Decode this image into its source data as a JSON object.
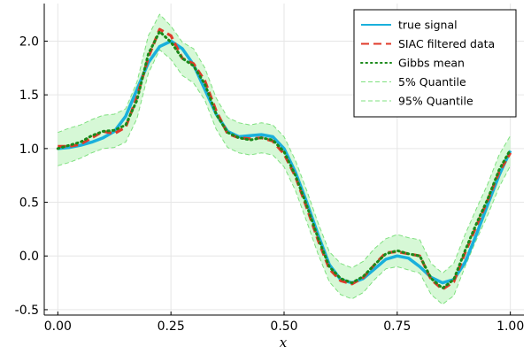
{
  "chart_data": {
    "type": "line",
    "title": "",
    "xlabel": "x",
    "ylabel": "",
    "xlim": [
      -0.03,
      1.03
    ],
    "ylim": [
      -0.55,
      2.35
    ],
    "xticks": [
      0.0,
      0.25,
      0.5,
      0.75,
      1.0
    ],
    "xtick_labels": [
      "0.00",
      "0.25",
      "0.50",
      "0.75",
      "1.00"
    ],
    "yticks": [
      -0.5,
      0.0,
      0.5,
      1.0,
      1.5,
      2.0
    ],
    "ytick_labels": [
      "-0.5",
      "0.0",
      "0.5",
      "1.0",
      "1.5",
      "2.0"
    ],
    "grid": true,
    "legend_position": "top-right",
    "x": [
      0.0,
      0.025,
      0.05,
      0.075,
      0.1,
      0.125,
      0.15,
      0.175,
      0.2,
      0.225,
      0.25,
      0.275,
      0.3,
      0.325,
      0.35,
      0.375,
      0.4,
      0.425,
      0.45,
      0.475,
      0.5,
      0.525,
      0.55,
      0.575,
      0.6,
      0.625,
      0.65,
      0.675,
      0.7,
      0.725,
      0.75,
      0.775,
      0.8,
      0.825,
      0.85,
      0.875,
      0.9,
      0.925,
      0.95,
      0.975,
      1.0
    ],
    "series": [
      {
        "name": "true signal",
        "color": "#1ab0dc",
        "style": "solid",
        "values": [
          1.0,
          1.01,
          1.03,
          1.06,
          1.1,
          1.16,
          1.3,
          1.55,
          1.8,
          1.95,
          2.0,
          1.93,
          1.78,
          1.55,
          1.32,
          1.16,
          1.11,
          1.12,
          1.13,
          1.11,
          1.0,
          0.78,
          0.5,
          0.2,
          -0.08,
          -0.22,
          -0.25,
          -0.21,
          -0.12,
          -0.03,
          0.0,
          -0.02,
          -0.1,
          -0.2,
          -0.25,
          -0.22,
          -0.06,
          0.2,
          0.48,
          0.75,
          0.98
        ]
      },
      {
        "name": "SIAC filtered data",
        "color": "#e03a2a",
        "style": "dashed",
        "values": [
          1.02,
          1.02,
          1.04,
          1.1,
          1.16,
          1.14,
          1.2,
          1.48,
          1.85,
          2.11,
          2.05,
          1.84,
          1.79,
          1.63,
          1.35,
          1.14,
          1.1,
          1.09,
          1.1,
          1.07,
          0.95,
          0.74,
          0.45,
          0.15,
          -0.12,
          -0.23,
          -0.26,
          -0.2,
          -0.08,
          0.03,
          0.04,
          0.02,
          0.0,
          -0.22,
          -0.31,
          -0.24,
          0.03,
          0.28,
          0.52,
          0.78,
          0.96
        ]
      },
      {
        "name": "Gibbs mean",
        "color": "#1a8a1a",
        "style": "dotted",
        "values": [
          1.0,
          1.03,
          1.06,
          1.12,
          1.16,
          1.17,
          1.22,
          1.45,
          1.88,
          2.09,
          1.99,
          1.84,
          1.77,
          1.6,
          1.32,
          1.15,
          1.1,
          1.08,
          1.1,
          1.08,
          0.97,
          0.75,
          0.47,
          0.17,
          -0.1,
          -0.21,
          -0.25,
          -0.19,
          -0.08,
          0.02,
          0.05,
          0.02,
          0.0,
          -0.21,
          -0.3,
          -0.22,
          0.05,
          0.3,
          0.53,
          0.8,
          0.99
        ]
      },
      {
        "name": "5% Quantile",
        "color": "#7fe07f",
        "style": "dashed",
        "values": [
          0.84,
          0.87,
          0.91,
          0.96,
          1.0,
          1.01,
          1.06,
          1.28,
          1.7,
          1.92,
          1.83,
          1.68,
          1.61,
          1.45,
          1.18,
          1.01,
          0.96,
          0.94,
          0.96,
          0.94,
          0.83,
          0.61,
          0.32,
          0.02,
          -0.24,
          -0.36,
          -0.4,
          -0.34,
          -0.22,
          -0.12,
          -0.1,
          -0.13,
          -0.16,
          -0.36,
          -0.45,
          -0.37,
          -0.1,
          0.15,
          0.38,
          0.64,
          0.84
        ]
      },
      {
        "name": "95% Quantile",
        "color": "#7fe07f",
        "style": "dashed",
        "values": [
          1.15,
          1.19,
          1.22,
          1.27,
          1.31,
          1.32,
          1.37,
          1.62,
          2.05,
          2.25,
          2.14,
          1.99,
          1.93,
          1.75,
          1.47,
          1.29,
          1.24,
          1.22,
          1.24,
          1.22,
          1.11,
          0.89,
          0.61,
          0.31,
          0.04,
          -0.07,
          -0.11,
          -0.05,
          0.07,
          0.16,
          0.2,
          0.17,
          0.15,
          -0.07,
          -0.16,
          -0.07,
          0.2,
          0.44,
          0.67,
          0.94,
          1.12
        ]
      }
    ],
    "band": {
      "lower": "5% Quantile",
      "upper": "95% Quantile",
      "fill": "#c8f5c8"
    }
  }
}
